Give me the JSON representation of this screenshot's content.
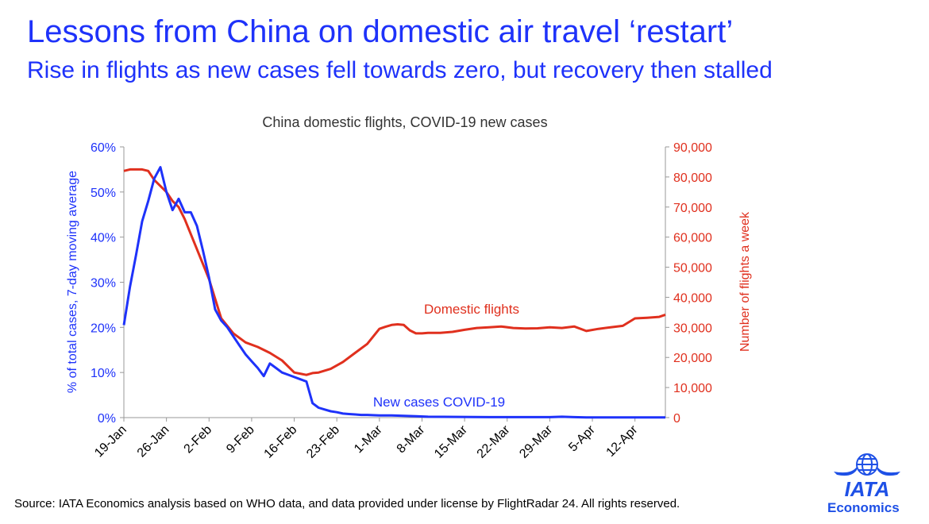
{
  "header": {
    "title": "Lessons from China on domestic air travel ‘restart’",
    "subtitle": "Rise in flights as new cases fell towards zero, but recovery then stalled"
  },
  "footer": {
    "source": "Source: IATA Economics analysis based on WHO data, and data provided under license by FlightRadar 24. All rights reserved.",
    "logo_text": "IATA",
    "logo_caption": "Economics"
  },
  "colors": {
    "cases": "#1e32fa",
    "flights": "#e0301e",
    "brand": "#1e50e6"
  },
  "chart_data": {
    "type": "line",
    "title": "China domestic flights, COVID-19 new cases",
    "xlabel": "",
    "ylabel_left": "% of total cases, 7-day moving average",
    "ylabel_right": "Number of flights a week",
    "x_ticks": [
      "19-Jan",
      "26-Jan",
      "2-Feb",
      "9-Feb",
      "16-Feb",
      "23-Feb",
      "1-Mar",
      "8-Mar",
      "15-Mar",
      "22-Mar",
      "29-Mar",
      "5-Apr",
      "12-Apr"
    ],
    "x_range_days_from_19_jan": [
      0,
      89
    ],
    "y_left_ticks": [
      "0%",
      "10%",
      "20%",
      "30%",
      "40%",
      "50%",
      "60%"
    ],
    "y_left_range": [
      0,
      60
    ],
    "y_right_ticks": [
      "0",
      "10,000",
      "20,000",
      "30,000",
      "40,000",
      "50,000",
      "60,000",
      "70,000",
      "80,000",
      "90,000"
    ],
    "y_right_range": [
      0,
      90000
    ],
    "legend": "none",
    "grid": false,
    "series": [
      {
        "name": "New cases COVID-19",
        "axis": "left",
        "x": [
          0,
          1,
          2,
          3,
          4,
          5,
          6,
          7,
          8,
          9,
          10,
          11,
          12,
          13,
          14,
          15,
          16,
          17,
          18,
          19,
          20,
          21,
          22,
          23,
          24,
          25,
          26,
          27,
          28,
          29,
          30,
          31,
          32,
          33,
          34,
          35,
          36,
          37,
          38,
          39,
          40,
          42,
          44,
          46,
          48,
          50,
          55,
          60,
          65,
          70,
          72,
          74,
          76,
          80,
          85,
          89
        ],
        "values": [
          20.5,
          29,
          36,
          43.5,
          48,
          53,
          55.5,
          50,
          46,
          48.5,
          45.5,
          45.5,
          42.5,
          37,
          31,
          24,
          21.5,
          20,
          18,
          16,
          14,
          12.5,
          11,
          9.2,
          12,
          11,
          10,
          9.5,
          9,
          8.5,
          8,
          3.2,
          2.2,
          1.8,
          1.4,
          1.2,
          0.9,
          0.8,
          0.7,
          0.6,
          0.6,
          0.5,
          0.5,
          0.4,
          0.3,
          0.2,
          0.15,
          0.1,
          0.1,
          0.1,
          0.2,
          0.1,
          0.05,
          0.05,
          0.05,
          0.05
        ]
      },
      {
        "name": "Domestic flights",
        "axis": "right",
        "x": [
          0,
          1,
          2,
          3,
          4,
          5,
          6,
          7,
          8,
          9,
          10,
          12,
          14,
          16,
          18,
          20,
          22,
          24,
          26,
          28,
          30,
          31,
          32,
          34,
          36,
          38,
          40,
          42,
          43,
          44,
          45,
          46,
          47,
          48,
          49,
          50,
          52,
          54,
          56,
          58,
          60,
          62,
          64,
          66,
          68,
          70,
          72,
          74,
          76,
          78,
          80,
          82,
          84,
          86,
          88,
          89
        ],
        "values": [
          82000,
          82500,
          82500,
          82500,
          82000,
          79000,
          77000,
          75000,
          72000,
          70000,
          66000,
          56000,
          46000,
          33000,
          28000,
          25000,
          23500,
          21500,
          19000,
          15000,
          14200,
          14800,
          15000,
          16200,
          18500,
          21500,
          24500,
          29500,
          30200,
          30800,
          31000,
          30800,
          29000,
          28000,
          28000,
          28200,
          28200,
          28500,
          29200,
          29800,
          30000,
          30300,
          29800,
          29600,
          29700,
          30000,
          29800,
          30300,
          28800,
          29500,
          30000,
          30500,
          33000,
          33200,
          33500,
          34200
        ]
      }
    ],
    "annotations": [
      "Domestic flights",
      "New cases COVID-19"
    ]
  }
}
